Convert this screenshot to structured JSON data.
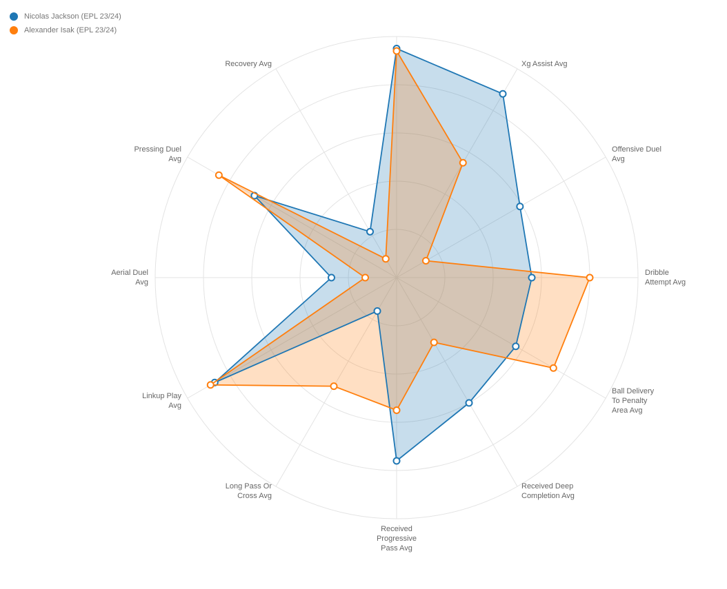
{
  "chart_data": {
    "type": "radar",
    "top_axis_label": "",
    "axes": [
      {
        "key": "top",
        "label": []
      },
      {
        "key": "xg_assist",
        "label": [
          "Xg Assist Avg"
        ]
      },
      {
        "key": "offensive_duel",
        "label": [
          "Offensive Duel",
          "Avg"
        ]
      },
      {
        "key": "dribble_attempt",
        "label": [
          "Dribble",
          "Attempt Avg"
        ]
      },
      {
        "key": "ball_delivery",
        "label": [
          "Ball Delivery",
          "To Penalty",
          "Area Avg"
        ]
      },
      {
        "key": "received_deep",
        "label": [
          "Received Deep",
          "Completion Avg"
        ]
      },
      {
        "key": "received_progressive",
        "label": [
          "Received",
          "Progressive",
          "Pass Avg"
        ]
      },
      {
        "key": "long_pass_cross",
        "label": [
          "Long Pass Or",
          "Cross Avg"
        ]
      },
      {
        "key": "linkup_play",
        "label": [
          "Linkup Play",
          "Avg"
        ]
      },
      {
        "key": "aerial_duel",
        "label": [
          "Aerial Duel",
          "Avg"
        ]
      },
      {
        "key": "pressing_duel",
        "label": [
          "Pressing Duel",
          "Avg"
        ]
      },
      {
        "key": "recovery",
        "label": [
          "Recovery Avg"
        ]
      }
    ],
    "rings": 5,
    "max": 1,
    "series": [
      {
        "name": "Nicolas Jackson (EPL 23/24)",
        "color": "#1f77b4",
        "values": [
          0.95,
          0.88,
          0.59,
          0.56,
          0.57,
          0.6,
          0.76,
          0.16,
          0.87,
          0.27,
          0.68,
          0.22
        ]
      },
      {
        "name": "Alexander Isak (EPL 23/24)",
        "color": "#ff7f0e",
        "values": [
          0.94,
          0.55,
          0.14,
          0.8,
          0.75,
          0.31,
          0.55,
          0.52,
          0.89,
          0.13,
          0.85,
          0.09
        ]
      }
    ]
  }
}
